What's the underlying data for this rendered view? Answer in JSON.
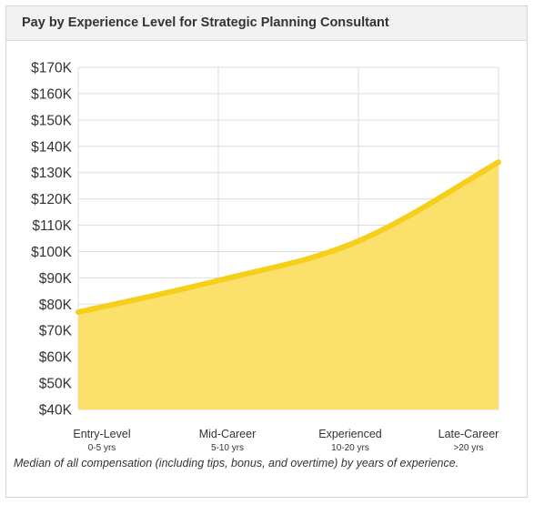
{
  "card": {
    "title": "Pay by Experience Level for Strategic Planning Consultant",
    "caption": "Median of all compensation (including tips, bonus, and overtime) by years of experience."
  },
  "colors": {
    "line": "#f5cf1a",
    "fill": "#fbe06c",
    "grid": "#dddddd",
    "text": "#333333"
  },
  "chart_data": {
    "type": "area",
    "categories": [
      "Entry-Level",
      "Mid-Career",
      "Experienced",
      "Late-Career"
    ],
    "category_sublabels": [
      "0-5 yrs",
      "5-10 yrs",
      "10-20 yrs",
      ">20 yrs"
    ],
    "values": [
      77000,
      89000,
      104000,
      134000
    ],
    "ylim": [
      40000,
      170000
    ],
    "yticks": [
      40000,
      50000,
      60000,
      70000,
      80000,
      90000,
      100000,
      110000,
      120000,
      130000,
      140000,
      150000,
      160000,
      170000
    ],
    "ytick_labels": [
      "$40K",
      "$50K",
      "$60K",
      "$70K",
      "$80K",
      "$90K",
      "$100K",
      "$110K",
      "$120K",
      "$130K",
      "$140K",
      "$150K",
      "$160K",
      "$170K"
    ],
    "grid": true
  }
}
